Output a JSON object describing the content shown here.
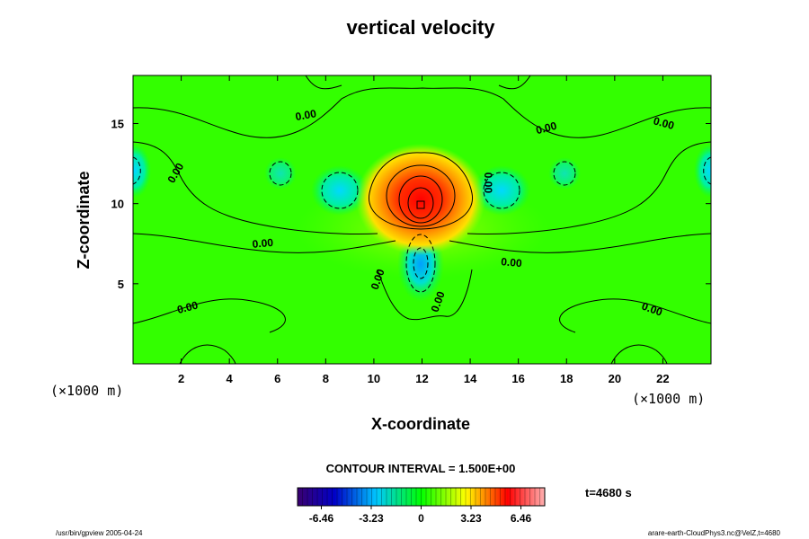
{
  "chart_data": {
    "type": "heatmap",
    "title": "vertical velocity",
    "xlabel": "X-coordinate",
    "ylabel": "Z-coordinate",
    "x_unit": "(×1000 m)",
    "z_unit": "(×1000 m)",
    "xlim": [
      0,
      24
    ],
    "ylim": [
      0,
      18
    ],
    "x_ticks": [
      2,
      4,
      6,
      8,
      10,
      12,
      14,
      16,
      18,
      20,
      22
    ],
    "y_ticks": [
      5,
      10,
      15
    ],
    "contour_interval_text": "CONTOUR INTERVAL = 1.500E+00",
    "contour_labels": [
      {
        "text": "0.00",
        "x": 7.2,
        "z": 15.3,
        "angle": -10
      },
      {
        "text": "0.00",
        "x": 17.2,
        "z": 14.5,
        "angle": -15
      },
      {
        "text": "0.00",
        "x": 22.0,
        "z": 14.8,
        "angle": 15
      },
      {
        "text": "0.00",
        "x": 1.9,
        "z": 11.8,
        "angle": -60
      },
      {
        "text": "0.00",
        "x": 14.6,
        "z": 11.3,
        "angle": 90
      },
      {
        "text": "0.00",
        "x": 5.4,
        "z": 7.3,
        "angle": -5
      },
      {
        "text": "0.00",
        "x": 15.7,
        "z": 6.1,
        "angle": 5
      },
      {
        "text": "0.00",
        "x": 10.3,
        "z": 5.2,
        "angle": -70
      },
      {
        "text": "0.00",
        "x": 12.8,
        "z": 3.8,
        "angle": -70
      },
      {
        "text": "0.00",
        "x": 2.3,
        "z": 3.3,
        "angle": -15
      },
      {
        "text": "0.00",
        "x": 21.5,
        "z": 3.2,
        "angle": 20
      }
    ],
    "features": [
      {
        "name": "central updraft core",
        "x": 12.0,
        "z": 10.0,
        "peak": 6.46
      },
      {
        "name": "downdraft below core",
        "x": 12.0,
        "z": 6.3,
        "peak": -3.23
      },
      {
        "name": "left downdraft",
        "x": 8.6,
        "z": 10.8,
        "peak": -1.5
      },
      {
        "name": "right downdraft",
        "x": 15.3,
        "z": 10.8,
        "peak": -1.5
      }
    ],
    "colorbar": {
      "ticks": [
        "-6.46",
        "-3.23",
        "0",
        "3.23",
        "6.46"
      ],
      "range": [
        -8.0,
        8.0
      ],
      "colors": [
        "#3a0070",
        "#0000c8",
        "#00c8ff",
        "#00ff00",
        "#ffff00",
        "#ff0000",
        "#ffb0b0"
      ]
    },
    "time_label": "t=4680 s"
  },
  "footer": {
    "left": "/usr/bin/gpview 2005-04-24",
    "right": "arare-earth-CloudPhys3.nc@VelZ,t=4680"
  }
}
